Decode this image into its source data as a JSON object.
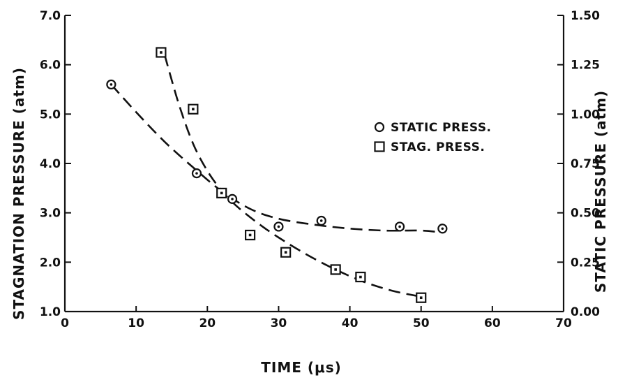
{
  "chart_data": {
    "type": "scatter",
    "title": "",
    "xlabel": "TIME (μs)",
    "ylabel_left": "STAGNATION PRESSURE (atm)",
    "ylabel_right": "STATIC PRESSURE (atm)",
    "xlim": [
      0,
      70
    ],
    "ylim_left": [
      1.0,
      7.0
    ],
    "ylim_right": [
      0.0,
      1.5
    ],
    "x_ticks": [
      "0",
      "10",
      "20",
      "30",
      "40",
      "50",
      "60",
      "70"
    ],
    "y_left_ticks": [
      "1.0",
      "2.0",
      "3.0",
      "4.0",
      "5.0",
      "6.0",
      "7.0"
    ],
    "y_right_ticks": [
      "0.00",
      "0.25",
      "0.50",
      "0.75",
      "1.00",
      "1.25",
      "1.50"
    ],
    "grid": false,
    "legend_position": "right",
    "series": [
      {
        "name": "STATIC PRESS.",
        "marker": "circle",
        "axis": "right",
        "x": [
          6.5,
          18.5,
          23.5,
          30,
          36,
          47,
          53
        ],
        "y": [
          1.15,
          0.7,
          0.57,
          0.43,
          0.46,
          0.43,
          0.42
        ],
        "fit_x": [
          6.5,
          10,
          14,
          18,
          22,
          26,
          30,
          35,
          40,
          45,
          50,
          53
        ],
        "fit_y": [
          1.15,
          1.01,
          0.86,
          0.73,
          0.61,
          0.52,
          0.47,
          0.44,
          0.42,
          0.41,
          0.41,
          0.4
        ]
      },
      {
        "name": "STAG. PRESS.",
        "marker": "square",
        "axis": "left",
        "x": [
          13.5,
          18,
          22,
          26,
          31,
          38,
          41.5,
          50
        ],
        "y": [
          6.25,
          5.1,
          3.4,
          2.55,
          2.2,
          1.85,
          1.7,
          1.28
        ],
        "fit_x": [
          14,
          16,
          18,
          20,
          22,
          24,
          27,
          30,
          34,
          38,
          42,
          46,
          50
        ],
        "fit_y": [
          6.2,
          5.2,
          4.4,
          3.85,
          3.45,
          3.15,
          2.8,
          2.5,
          2.15,
          1.85,
          1.6,
          1.42,
          1.3
        ]
      }
    ]
  }
}
